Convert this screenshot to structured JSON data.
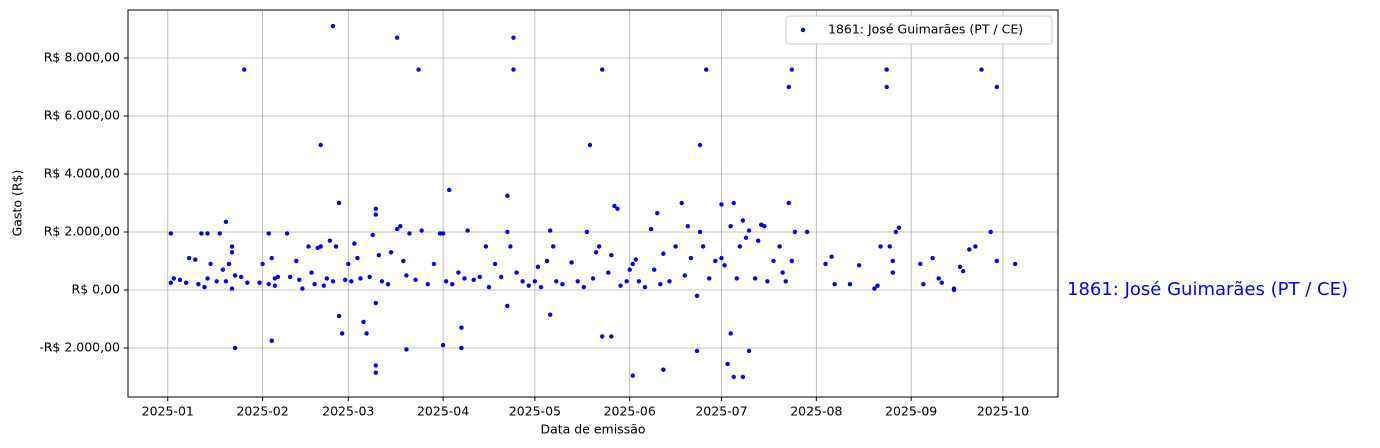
{
  "chart_data": {
    "type": "scatter",
    "x_label": "Data de emissão",
    "y_label": "Gasto (R$)",
    "annotation": "1861: José Guimarães (PT / CE)",
    "legend": "upper right",
    "grid": true,
    "xlim": [
      "2024-12-19",
      "2025-10-19"
    ],
    "xticks": [
      "2025-01",
      "2025-02",
      "2025-03",
      "2025-04",
      "2025-05",
      "2025-06",
      "2025-07",
      "2025-08",
      "2025-09",
      "2025-10"
    ],
    "ylim": [
      -3690,
      9655
    ],
    "yticks": [
      {
        "value": -2000,
        "label": "-R$ 2.000,00"
      },
      {
        "value": 0,
        "label": "R$ 0,00"
      },
      {
        "value": 2000,
        "label": "R$ 2.000,00"
      },
      {
        "value": 4000,
        "label": "R$ 4.000,00"
      },
      {
        "value": 6000,
        "label": "R$ 6.000,00"
      },
      {
        "value": 8000,
        "label": "R$ 8.000,00"
      }
    ],
    "series": [
      {
        "name": "1861: José Guimarães (PT / CE)",
        "color": "#0000ff",
        "x": [
          "2025-01-02",
          "2025-01-02",
          "2025-01-03",
          "2025-01-05",
          "2025-01-07",
          "2025-01-08",
          "2025-01-10",
          "2025-01-11",
          "2025-01-12",
          "2025-01-13",
          "2025-01-14",
          "2025-01-14",
          "2025-01-15",
          "2025-01-17",
          "2025-01-18",
          "2025-01-19",
          "2025-01-20",
          "2025-01-20",
          "2025-01-21",
          "2025-01-22",
          "2025-01-22",
          "2025-01-22",
          "2025-01-23",
          "2025-01-23",
          "2025-01-25",
          "2025-01-26",
          "2025-01-27",
          "2025-01-31",
          "2025-02-01",
          "2025-02-03",
          "2025-02-03",
          "2025-02-04",
          "2025-02-04",
          "2025-02-05",
          "2025-02-05",
          "2025-02-06",
          "2025-02-09",
          "2025-02-10",
          "2025-02-12",
          "2025-02-13",
          "2025-02-14",
          "2025-02-16",
          "2025-02-17",
          "2025-02-18",
          "2025-02-19",
          "2025-02-20",
          "2025-02-20",
          "2025-02-21",
          "2025-02-22",
          "2025-02-23",
          "2025-02-24",
          "2025-02-24",
          "2025-02-25",
          "2025-02-26",
          "2025-02-26",
          "2025-02-27",
          "2025-02-28",
          "2025-03-01",
          "2025-03-02",
          "2025-03-03",
          "2025-03-04",
          "2025-03-05",
          "2025-03-06",
          "2025-03-07",
          "2025-03-08",
          "2025-03-09",
          "2025-03-10",
          "2025-03-10",
          "2025-03-10",
          "2025-03-10",
          "2025-03-10",
          "2025-03-11",
          "2025-03-12",
          "2025-03-14",
          "2025-03-15",
          "2025-03-17",
          "2025-03-17",
          "2025-03-18",
          "2025-03-19",
          "2025-03-20",
          "2025-03-20",
          "2025-03-21",
          "2025-03-23",
          "2025-03-24",
          "2025-03-25",
          "2025-03-27",
          "2025-03-29",
          "2025-03-31",
          "2025-04-01",
          "2025-04-01",
          "2025-04-02",
          "2025-04-03",
          "2025-04-04",
          "2025-04-06",
          "2025-04-07",
          "2025-04-07",
          "2025-04-08",
          "2025-04-09",
          "2025-04-11",
          "2025-04-13",
          "2025-04-15",
          "2025-04-16",
          "2025-04-18",
          "2025-04-20",
          "2025-04-22",
          "2025-04-22",
          "2025-04-22",
          "2025-04-23",
          "2025-04-24",
          "2025-04-24",
          "2025-04-25",
          "2025-04-27",
          "2025-04-29",
          "2025-05-01",
          "2025-05-02",
          "2025-05-03",
          "2025-05-05",
          "2025-05-06",
          "2025-05-06",
          "2025-05-07",
          "2025-05-08",
          "2025-05-10",
          "2025-05-13",
          "2025-05-15",
          "2025-05-17",
          "2025-05-18",
          "2025-05-19",
          "2025-05-20",
          "2025-05-21",
          "2025-05-22",
          "2025-05-23",
          "2025-05-23",
          "2025-05-25",
          "2025-05-26",
          "2025-05-26",
          "2025-05-27",
          "2025-05-28",
          "2025-05-29",
          "2025-05-31",
          "2025-06-01",
          "2025-06-02",
          "2025-06-02",
          "2025-06-03",
          "2025-06-04",
          "2025-06-06",
          "2025-06-08",
          "2025-06-09",
          "2025-06-10",
          "2025-06-11",
          "2025-06-12",
          "2025-06-12",
          "2025-06-14",
          "2025-06-16",
          "2025-06-18",
          "2025-06-19",
          "2025-06-20",
          "2025-06-21",
          "2025-06-23",
          "2025-06-23",
          "2025-06-24",
          "2025-06-24",
          "2025-06-25",
          "2025-06-26",
          "2025-06-27",
          "2025-06-29",
          "2025-07-01",
          "2025-07-01",
          "2025-07-02",
          "2025-07-03",
          "2025-07-04",
          "2025-07-04",
          "2025-07-05",
          "2025-07-05",
          "2025-07-06",
          "2025-07-07",
          "2025-07-08",
          "2025-07-08",
          "2025-07-09",
          "2025-07-10",
          "2025-07-10",
          "2025-07-12",
          "2025-07-13",
          "2025-07-14",
          "2025-07-15",
          "2025-07-16",
          "2025-07-18",
          "2025-07-20",
          "2025-07-21",
          "2025-07-22",
          "2025-07-23",
          "2025-07-23",
          "2025-07-24",
          "2025-07-24",
          "2025-07-25",
          "2025-07-29",
          "2025-08-04",
          "2025-08-06",
          "2025-08-07",
          "2025-08-12",
          "2025-08-15",
          "2025-08-20",
          "2025-08-21",
          "2025-08-22",
          "2025-08-24",
          "2025-08-24",
          "2025-08-25",
          "2025-08-26",
          "2025-08-26",
          "2025-08-27",
          "2025-08-28",
          "2025-09-04",
          "2025-09-05",
          "2025-09-08",
          "2025-09-10",
          "2025-09-11",
          "2025-09-15",
          "2025-09-15",
          "2025-09-17",
          "2025-09-18",
          "2025-09-20",
          "2025-09-22",
          "2025-09-24",
          "2025-09-27",
          "2025-09-29",
          "2025-09-29",
          "2025-10-05"
        ],
        "values": [
          250,
          1950,
          400,
          350,
          250,
          1100,
          1050,
          200,
          1950,
          100,
          400,
          1950,
          900,
          300,
          1950,
          700,
          2350,
          300,
          900,
          1500,
          1300,
          50,
          -2000,
          500,
          450,
          7600,
          250,
          250,
          900,
          1950,
          200,
          1100,
          -1750,
          400,
          150,
          450,
          1950,
          450,
          1000,
          350,
          50,
          1500,
          600,
          200,
          1450,
          5000,
          1500,
          150,
          400,
          1700,
          9100,
          300,
          1500,
          3000,
          -900,
          -1500,
          350,
          900,
          300,
          1600,
          1100,
          400,
          -1100,
          -1500,
          450,
          1900,
          2800,
          2600,
          -450,
          -2600,
          -2850,
          1200,
          300,
          200,
          1300,
          8700,
          2100,
          2200,
          1000,
          -2050,
          500,
          1950,
          350,
          7600,
          2050,
          200,
          900,
          1950,
          -1900,
          1950,
          300,
          3450,
          200,
          600,
          -1300,
          -2000,
          400,
          2050,
          350,
          450,
          1500,
          100,
          900,
          450,
          3250,
          -550,
          2000,
          1500,
          8700,
          7600,
          600,
          300,
          150,
          300,
          800,
          100,
          1000,
          2050,
          -850,
          1500,
          300,
          200,
          950,
          300,
          100,
          2000,
          5000,
          400,
          1300,
          1500,
          7600,
          -1600,
          600,
          -1600,
          1200,
          2900,
          2800,
          150,
          300,
          700,
          -2950,
          900,
          1050,
          300,
          100,
          2100,
          700,
          2650,
          200,
          -2750,
          1250,
          300,
          1500,
          3000,
          500,
          2200,
          1100,
          -200,
          -2100,
          5000,
          2000,
          1500,
          7600,
          400,
          1000,
          2950,
          1100,
          850,
          -2550,
          -1500,
          2200,
          -3000,
          3000,
          400,
          1500,
          -3000,
          2400,
          1800,
          -2100,
          2050,
          400,
          1700,
          2250,
          2200,
          300,
          1000,
          1500,
          600,
          300,
          7000,
          3000,
          7600,
          1000,
          2000,
          2000,
          900,
          1150,
          200,
          200,
          850,
          50,
          150,
          1500,
          7600,
          7000,
          1500,
          1000,
          600,
          2000,
          2150,
          900,
          200,
          1100,
          400,
          250,
          50,
          0,
          800,
          650,
          1400,
          1500,
          7600,
          2000,
          1000,
          7000,
          900
        ]
      }
    ]
  }
}
